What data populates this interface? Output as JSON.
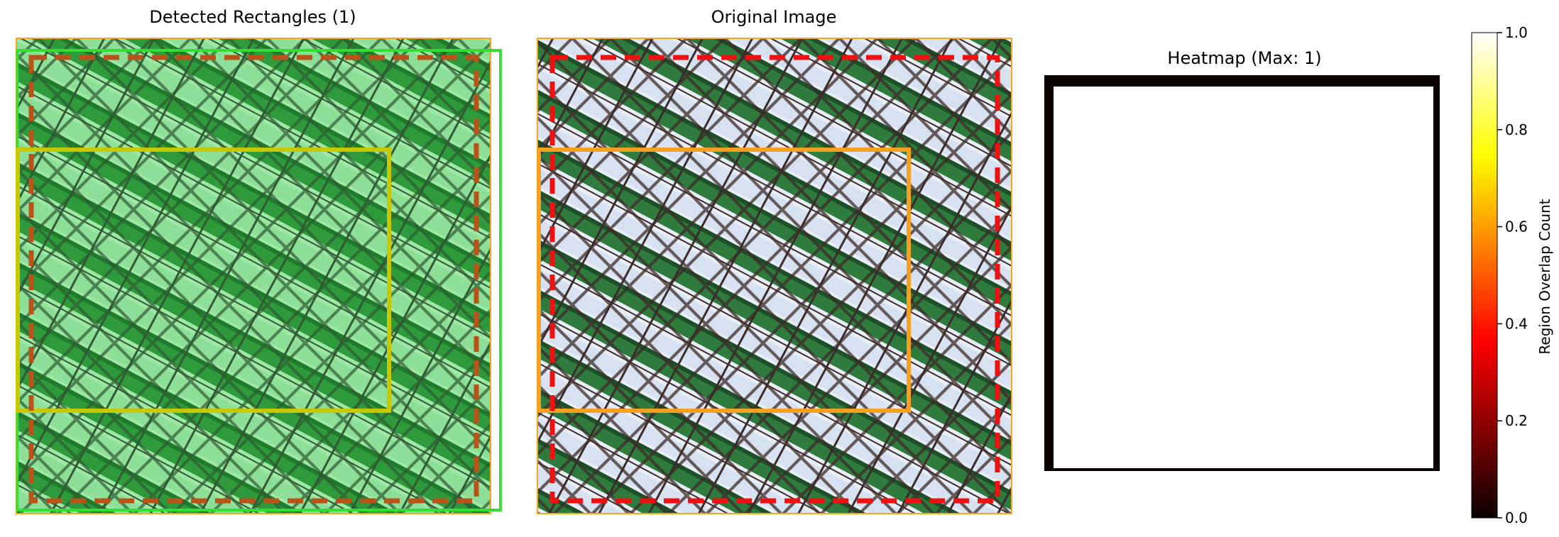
{
  "panels": {
    "detected_title": "Detected Rectangles (1)",
    "original_title": "Original Image",
    "heatmap_title": "Heatmap (Max: 1)"
  },
  "colorbar": {
    "label": "Region Overlap Count",
    "ticks": [
      "0.0",
      "0.2",
      "0.4",
      "0.6",
      "0.8",
      "1.0"
    ],
    "colormap": "hot"
  },
  "colors": {
    "frame_orange": "#f5a623",
    "rect_green": "#33dd33",
    "rect_yellow": "#c8c800",
    "rect_orange": "#f5a020",
    "dashed_brown": "#b8541a",
    "dashed_red": "#ee1111",
    "heatmap_edge": "#0b0000"
  },
  "chart_data": [
    {
      "type": "heatmap",
      "title": "Detected Rectangles (1)",
      "content": "green-tinted chain-link fence photo",
      "overlays": [
        "solid green rectangle",
        "solid yellow rectangle",
        "dashed brown rectangle"
      ]
    },
    {
      "type": "heatmap",
      "title": "Original Image",
      "content": "chain-link fence photo with privacy slats",
      "overlays": [
        "solid orange rectangle",
        "dashed red rectangle"
      ]
    },
    {
      "type": "heatmap",
      "title": "Heatmap (Max: 1)",
      "colormap": "hot",
      "vmin": 0,
      "vmax": 1,
      "colorbar_label": "Region Overlap Count",
      "colorbar_ticks": [
        0.0,
        0.2,
        0.4,
        0.6,
        0.8,
        1.0
      ]
    }
  ]
}
